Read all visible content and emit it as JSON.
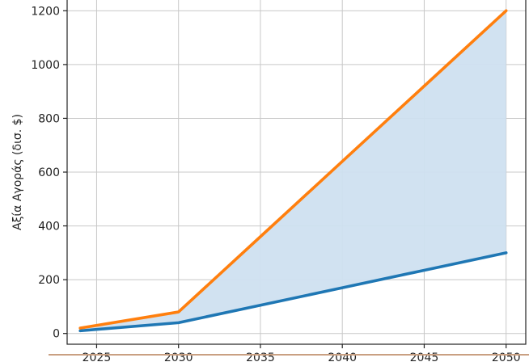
{
  "chart_data": {
    "type": "line",
    "title": "",
    "xlabel": "",
    "ylabel": "Αξία Αγοράς (δισ. $)",
    "xlim": [
      2023.2,
      2051.2
    ],
    "ylim": [
      -40,
      1240
    ],
    "xticks": [
      2025,
      2030,
      2035,
      2040,
      2045,
      2050
    ],
    "yticks": [
      0,
      200,
      400,
      600,
      800,
      1000,
      1200
    ],
    "grid": true,
    "legend": "none",
    "series": [
      {
        "color": "#1f77b4",
        "x": [
          2024,
          2030,
          2035,
          2040,
          2045,
          2050
        ],
        "y": [
          10,
          40,
          105,
          170,
          235,
          300
        ]
      },
      {
        "color": "#ff7f0e",
        "x": [
          2024,
          2030,
          2035,
          2040,
          2045,
          2050
        ],
        "y": [
          20,
          80,
          360,
          640,
          920,
          1200
        ]
      }
    ],
    "fill_between": {
      "lower_series": 0,
      "upper_series": 1,
      "color": "#cfe0f0"
    }
  }
}
